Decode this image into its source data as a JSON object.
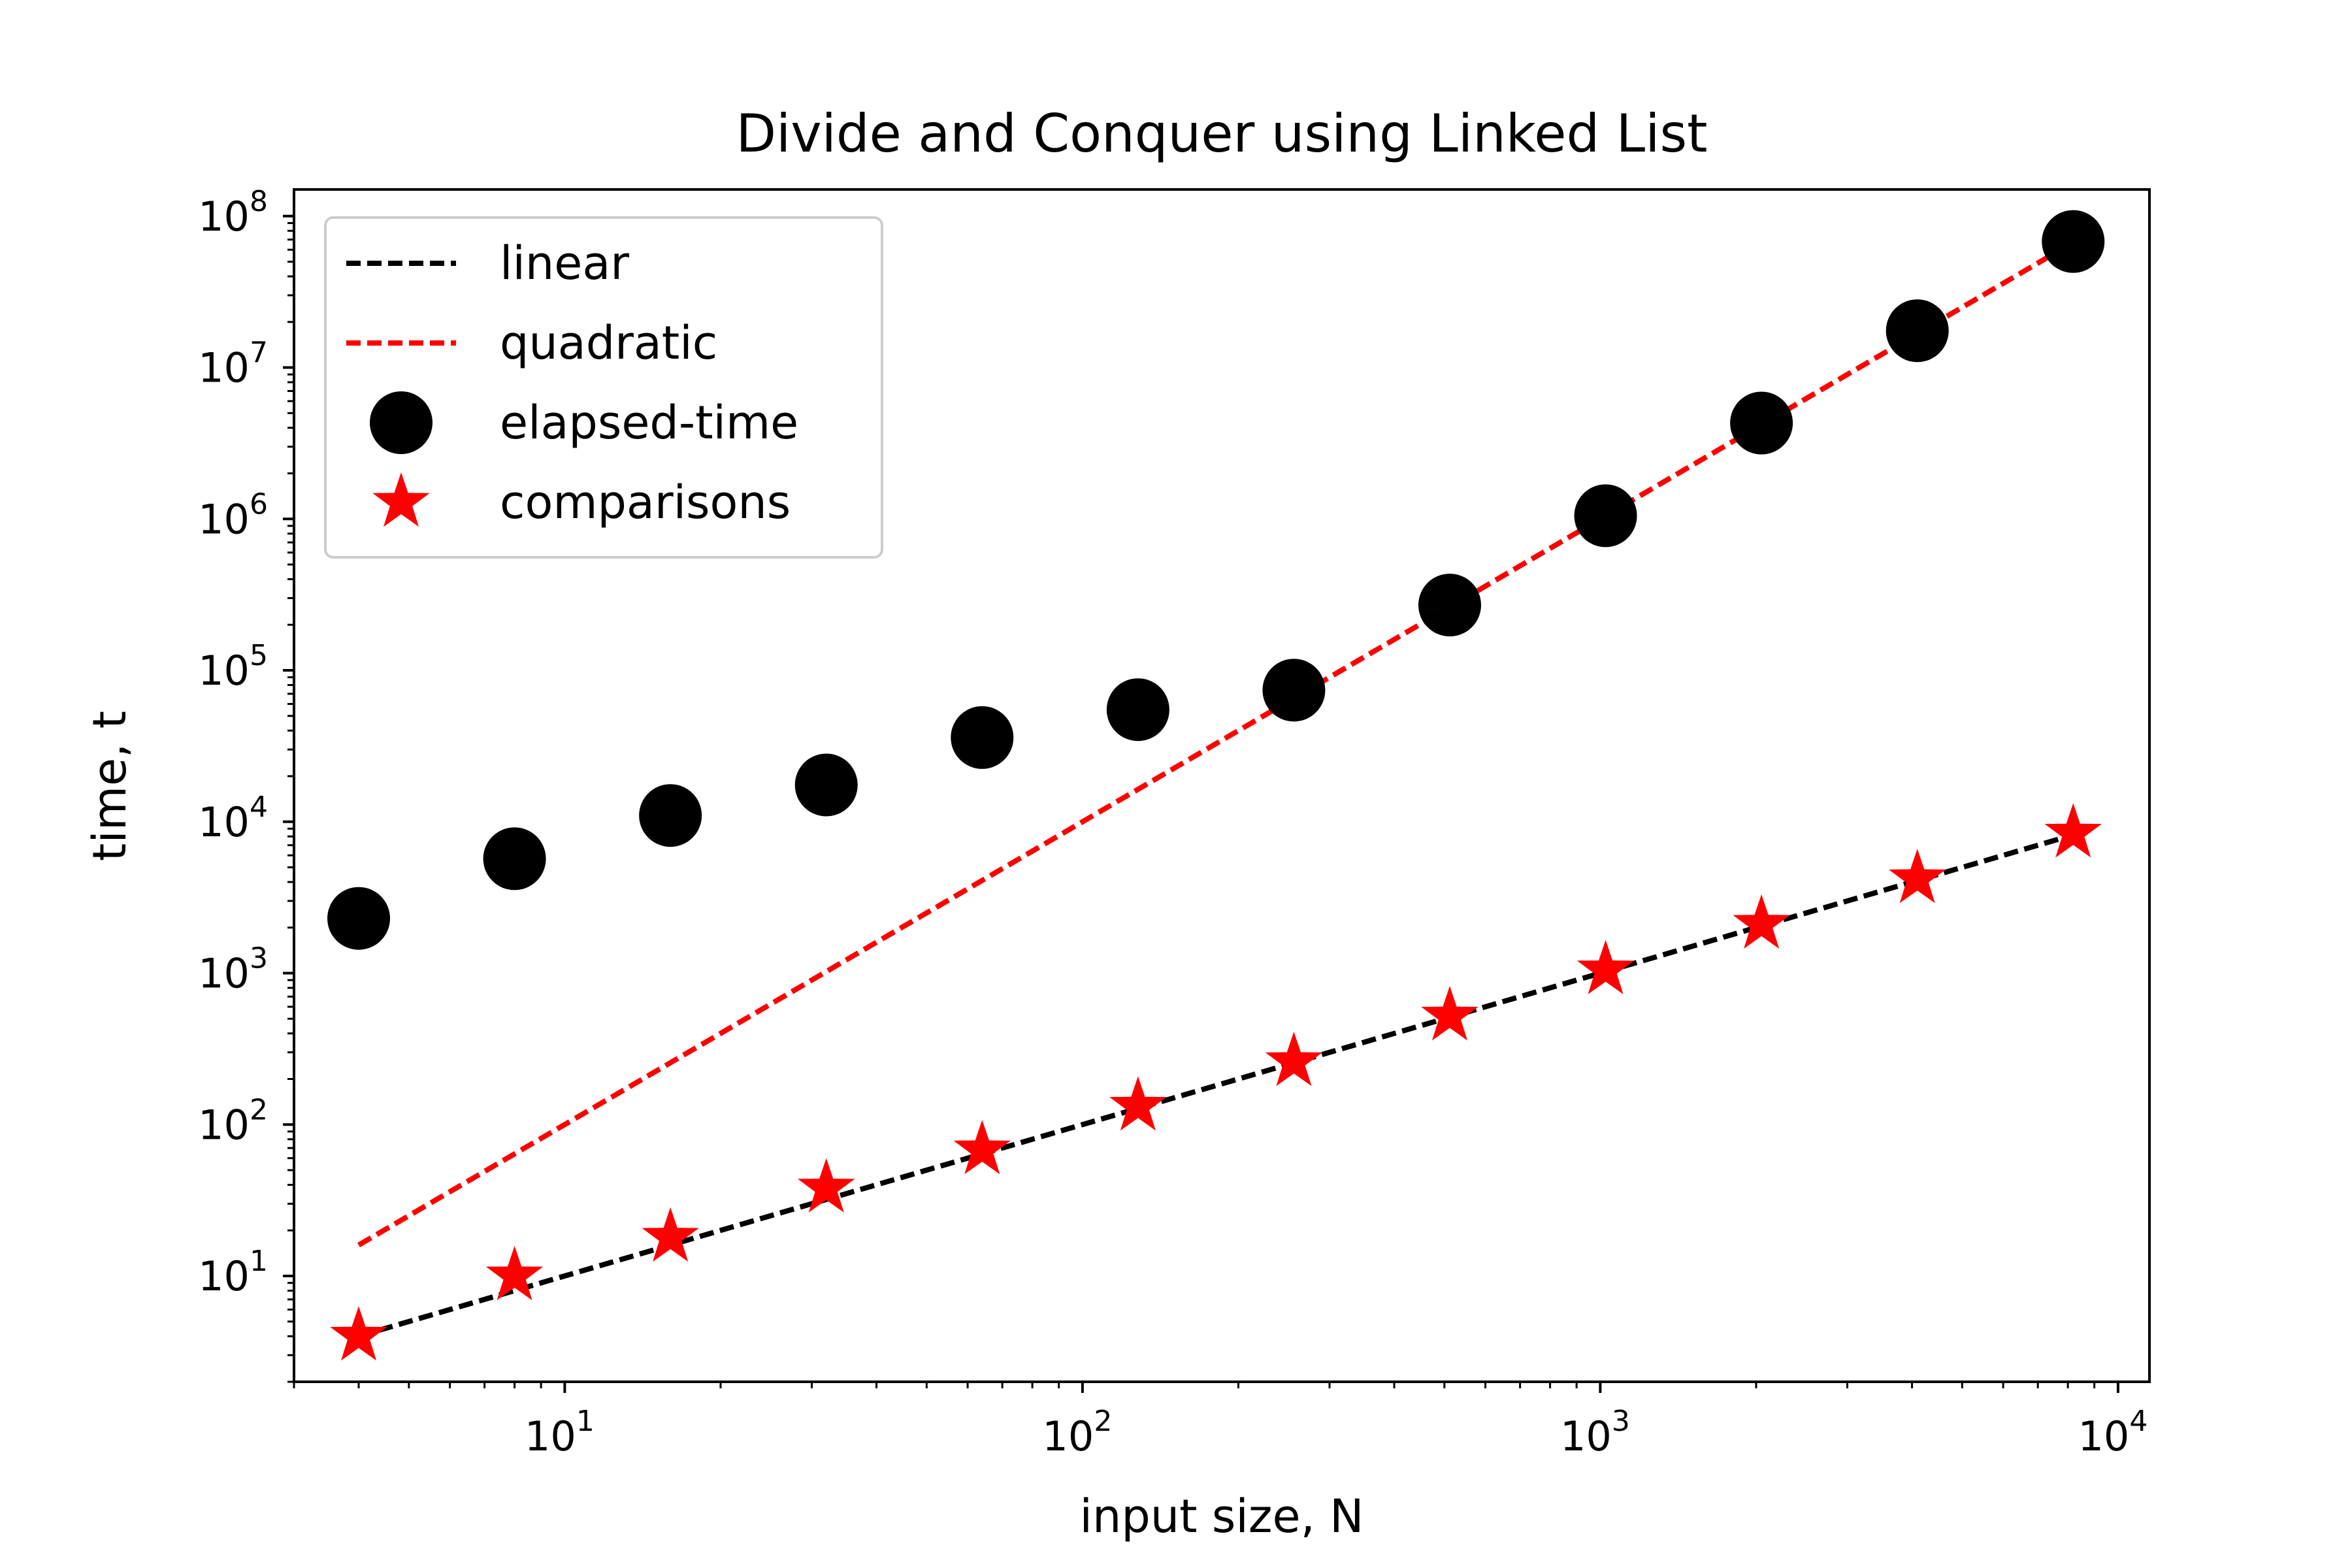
{
  "chart_data": {
    "type": "scatter",
    "title": "Divide and Conquer using Linked List",
    "xlabel": "input size, N",
    "ylabel": "time, t",
    "xscale": "log",
    "yscale": "log",
    "xlim": [
      3,
      11500
    ],
    "ylim": [
      2.0,
      150000000
    ],
    "grid": false,
    "legend": {
      "loc": "upper left"
    },
    "x_ticks": [
      {
        "base": "10",
        "exp": "1",
        "value": 10
      },
      {
        "base": "10",
        "exp": "2",
        "value": 100
      },
      {
        "base": "10",
        "exp": "3",
        "value": 1000
      },
      {
        "base": "10",
        "exp": "4",
        "value": 10000
      }
    ],
    "y_ticks": [
      {
        "base": "10",
        "exp": "1",
        "value": 10
      },
      {
        "base": "10",
        "exp": "2",
        "value": 100
      },
      {
        "base": "10",
        "exp": "3",
        "value": 1000
      },
      {
        "base": "10",
        "exp": "4",
        "value": 10000
      },
      {
        "base": "10",
        "exp": "5",
        "value": 100000
      },
      {
        "base": "10",
        "exp": "6",
        "value": 1000000
      },
      {
        "base": "10",
        "exp": "7",
        "value": 10000000
      },
      {
        "base": "10",
        "exp": "8",
        "value": 100000000
      }
    ],
    "series": [
      {
        "name": "linear",
        "kind": "line",
        "style": "dashed",
        "color": "#000000",
        "x": [
          4,
          8192
        ],
        "y": [
          4,
          8192
        ]
      },
      {
        "name": "quadratic",
        "kind": "line",
        "style": "dashed",
        "color": "#ff0000",
        "x": [
          4,
          8192
        ],
        "y": [
          16,
          67108864
        ]
      },
      {
        "name": "elapsed-time",
        "kind": "scatter",
        "marker": "circle",
        "color": "#000000",
        "x": [
          4,
          8,
          16,
          32,
          64,
          128,
          256,
          512,
          1024,
          2048,
          4096,
          8192
        ],
        "y": [
          2300,
          5700,
          11000,
          17500,
          36000,
          55000,
          74000,
          270000,
          1050000,
          4300000,
          17500000,
          68000000
        ]
      },
      {
        "name": "comparisons",
        "kind": "scatter",
        "marker": "star",
        "color": "#ff0000",
        "x": [
          4,
          8,
          16,
          32,
          64,
          128,
          256,
          512,
          1024,
          2048,
          4096,
          8192
        ],
        "y": [
          4,
          10,
          18,
          38,
          68,
          132,
          260,
          520,
          1050,
          2100,
          4200,
          8400
        ]
      }
    ]
  }
}
